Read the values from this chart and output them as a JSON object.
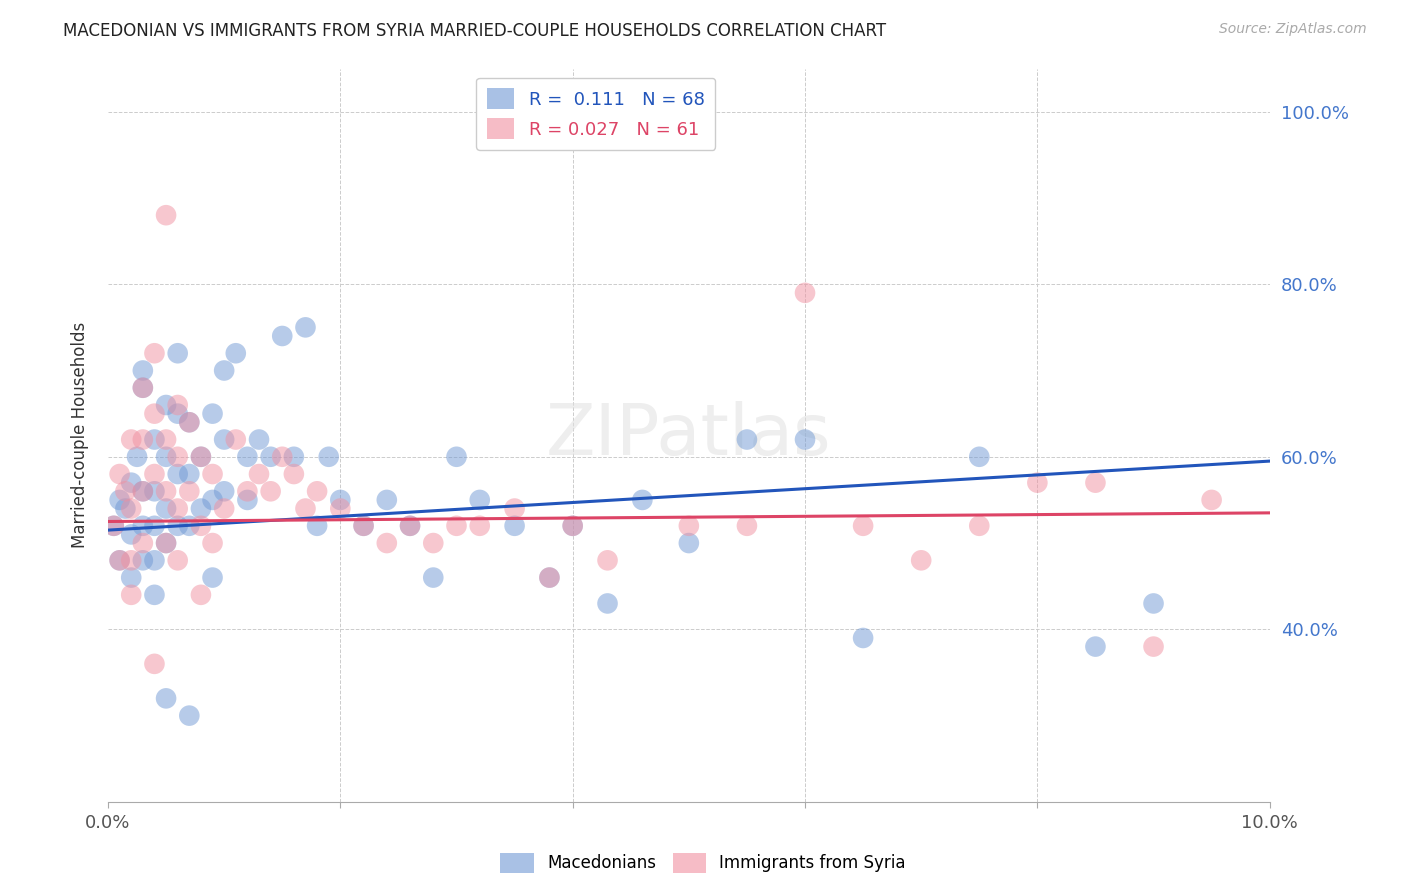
{
  "title": "MACEDONIAN VS IMMIGRANTS FROM SYRIA MARRIED-COUPLE HOUSEHOLDS CORRELATION CHART",
  "source": "Source: ZipAtlas.com",
  "ylabel": "Married-couple Households",
  "xlim": [
    0.0,
    0.1
  ],
  "ylim": [
    0.2,
    1.05
  ],
  "macedonians_R": 0.111,
  "macedonians_N": 68,
  "syria_R": 0.027,
  "syria_N": 61,
  "blue_color": "#7099d4",
  "pink_color": "#f090a0",
  "line_blue": "#2255bb",
  "line_pink": "#dd4466",
  "watermark": "ZIPatlas",
  "mac_trend_x0": 0.0,
  "mac_trend_y0": 0.515,
  "mac_trend_x1": 0.1,
  "mac_trend_y1": 0.595,
  "syr_trend_x0": 0.0,
  "syr_trend_y0": 0.525,
  "syr_trend_x1": 0.1,
  "syr_trend_y1": 0.535,
  "macedonians_x": [
    0.0005,
    0.001,
    0.001,
    0.0015,
    0.002,
    0.002,
    0.002,
    0.0025,
    0.003,
    0.003,
    0.003,
    0.003,
    0.003,
    0.004,
    0.004,
    0.004,
    0.004,
    0.004,
    0.005,
    0.005,
    0.005,
    0.005,
    0.006,
    0.006,
    0.006,
    0.006,
    0.007,
    0.007,
    0.007,
    0.008,
    0.008,
    0.009,
    0.009,
    0.01,
    0.01,
    0.01,
    0.011,
    0.012,
    0.012,
    0.013,
    0.014,
    0.015,
    0.016,
    0.017,
    0.018,
    0.019,
    0.02,
    0.022,
    0.024,
    0.026,
    0.028,
    0.03,
    0.032,
    0.035,
    0.038,
    0.04,
    0.043,
    0.046,
    0.05,
    0.055,
    0.06,
    0.065,
    0.075,
    0.085,
    0.09,
    0.005,
    0.007,
    0.009
  ],
  "macedonians_y": [
    0.52,
    0.55,
    0.48,
    0.54,
    0.57,
    0.51,
    0.46,
    0.6,
    0.56,
    0.52,
    0.48,
    0.7,
    0.68,
    0.62,
    0.56,
    0.52,
    0.48,
    0.44,
    0.66,
    0.6,
    0.54,
    0.5,
    0.72,
    0.65,
    0.58,
    0.52,
    0.64,
    0.58,
    0.52,
    0.6,
    0.54,
    0.65,
    0.55,
    0.7,
    0.62,
    0.56,
    0.72,
    0.6,
    0.55,
    0.62,
    0.6,
    0.74,
    0.6,
    0.75,
    0.52,
    0.6,
    0.55,
    0.52,
    0.55,
    0.52,
    0.46,
    0.6,
    0.55,
    0.52,
    0.46,
    0.52,
    0.43,
    0.55,
    0.5,
    0.62,
    0.62,
    0.39,
    0.6,
    0.38,
    0.43,
    0.32,
    0.3,
    0.46
  ],
  "syria_x": [
    0.0005,
    0.001,
    0.001,
    0.0015,
    0.002,
    0.002,
    0.002,
    0.003,
    0.003,
    0.003,
    0.003,
    0.004,
    0.004,
    0.004,
    0.005,
    0.005,
    0.005,
    0.005,
    0.006,
    0.006,
    0.006,
    0.007,
    0.007,
    0.008,
    0.008,
    0.009,
    0.009,
    0.01,
    0.011,
    0.012,
    0.013,
    0.014,
    0.015,
    0.016,
    0.017,
    0.018,
    0.02,
    0.022,
    0.024,
    0.026,
    0.028,
    0.03,
    0.032,
    0.035,
    0.038,
    0.04,
    0.043,
    0.05,
    0.055,
    0.06,
    0.065,
    0.07,
    0.075,
    0.08,
    0.085,
    0.09,
    0.095,
    0.002,
    0.004,
    0.006,
    0.008
  ],
  "syria_y": [
    0.52,
    0.58,
    0.48,
    0.56,
    0.62,
    0.54,
    0.48,
    0.68,
    0.62,
    0.56,
    0.5,
    0.72,
    0.65,
    0.58,
    0.88,
    0.62,
    0.56,
    0.5,
    0.66,
    0.6,
    0.54,
    0.64,
    0.56,
    0.6,
    0.52,
    0.58,
    0.5,
    0.54,
    0.62,
    0.56,
    0.58,
    0.56,
    0.6,
    0.58,
    0.54,
    0.56,
    0.54,
    0.52,
    0.5,
    0.52,
    0.5,
    0.52,
    0.52,
    0.54,
    0.46,
    0.52,
    0.48,
    0.52,
    0.52,
    0.79,
    0.52,
    0.48,
    0.52,
    0.57,
    0.57,
    0.38,
    0.55,
    0.44,
    0.36,
    0.48,
    0.44
  ]
}
